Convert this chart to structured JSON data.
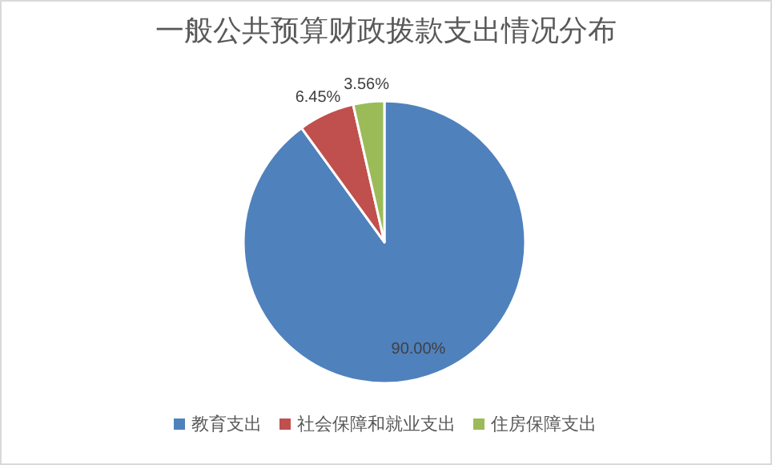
{
  "chart_data": {
    "type": "pie",
    "title": "一般公共预算财政拨款支出情况分布",
    "categories": [
      "教育支出",
      "社会保障和就业支出",
      "住房保障支出"
    ],
    "values": [
      90.0,
      6.45,
      3.56
    ],
    "colors": [
      "#4f81bd",
      "#c0504d",
      "#9bbb59"
    ],
    "value_labels": [
      "90.00%",
      "6.45%",
      "3.56%"
    ],
    "legend": "bottom"
  }
}
